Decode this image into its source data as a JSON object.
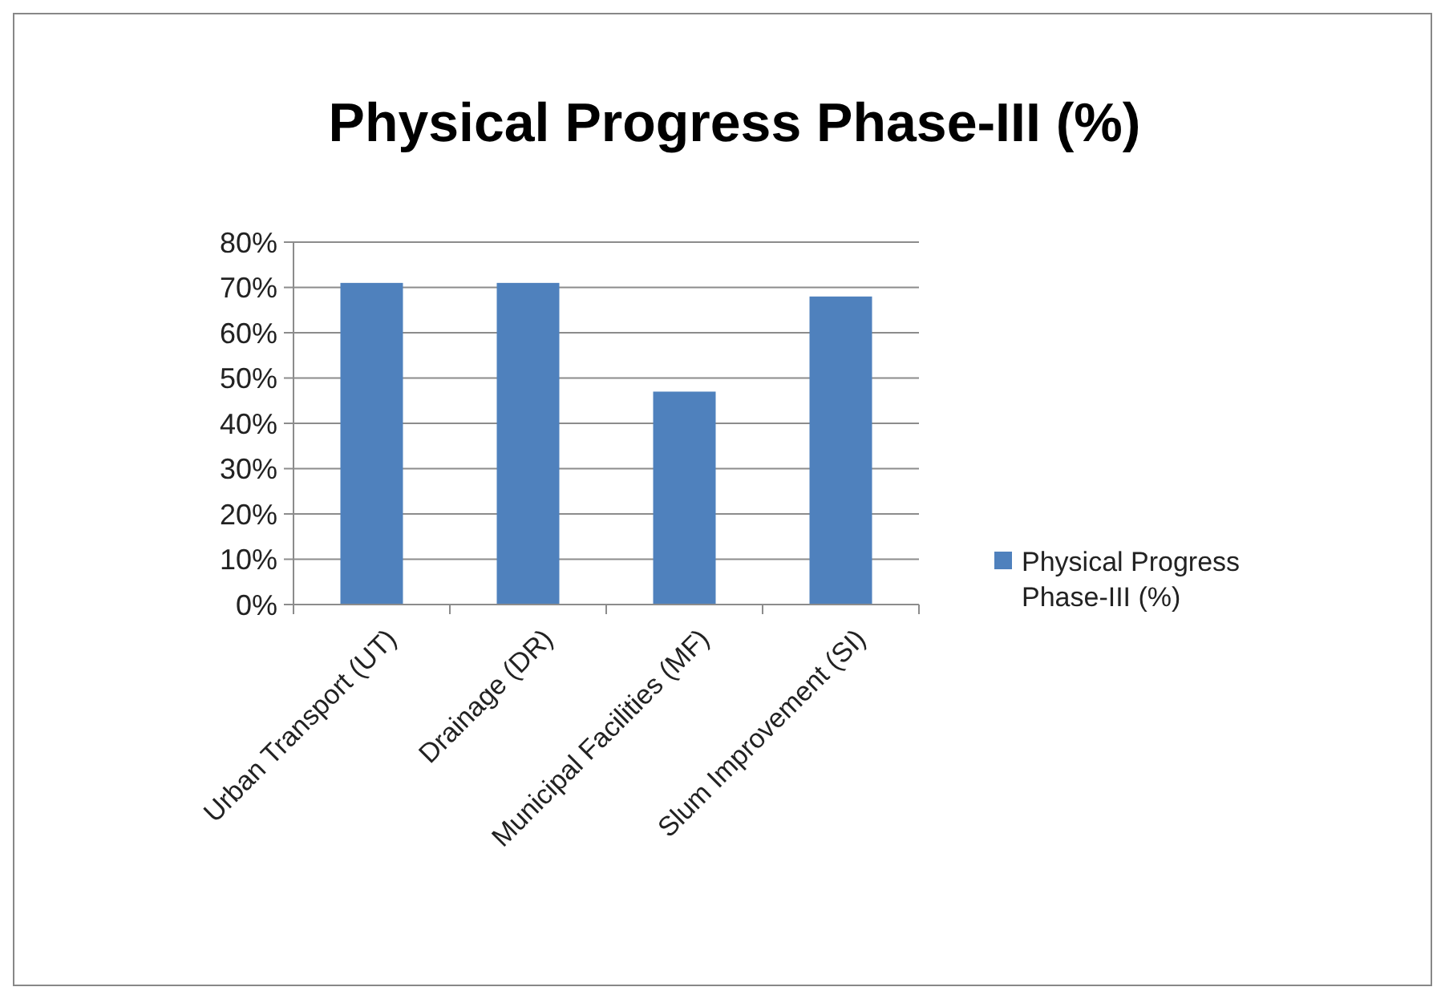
{
  "chart_data": {
    "type": "bar",
    "title": "Physical Progress Phase-III (%)",
    "categories": [
      "Urban Transport (UT)",
      "Drainage (DR)",
      "Municipal Facilities (MF)",
      "Slum Improvement (SI)"
    ],
    "series": [
      {
        "name": "Physical Progress Phase-III (%)",
        "color": "#4f81bd",
        "values": [
          71,
          71,
          47,
          68
        ]
      }
    ],
    "ylim": [
      0,
      80
    ],
    "yticks": [
      {
        "value": 0,
        "label": "0%"
      },
      {
        "value": 10,
        "label": "10%"
      },
      {
        "value": 20,
        "label": "20%"
      },
      {
        "value": 30,
        "label": "30%"
      },
      {
        "value": 40,
        "label": "40%"
      },
      {
        "value": 50,
        "label": "50%"
      },
      {
        "value": 60,
        "label": "60%"
      },
      {
        "value": 70,
        "label": "70%"
      },
      {
        "value": 80,
        "label": "80%"
      }
    ],
    "grid": "y",
    "legend": "right"
  }
}
